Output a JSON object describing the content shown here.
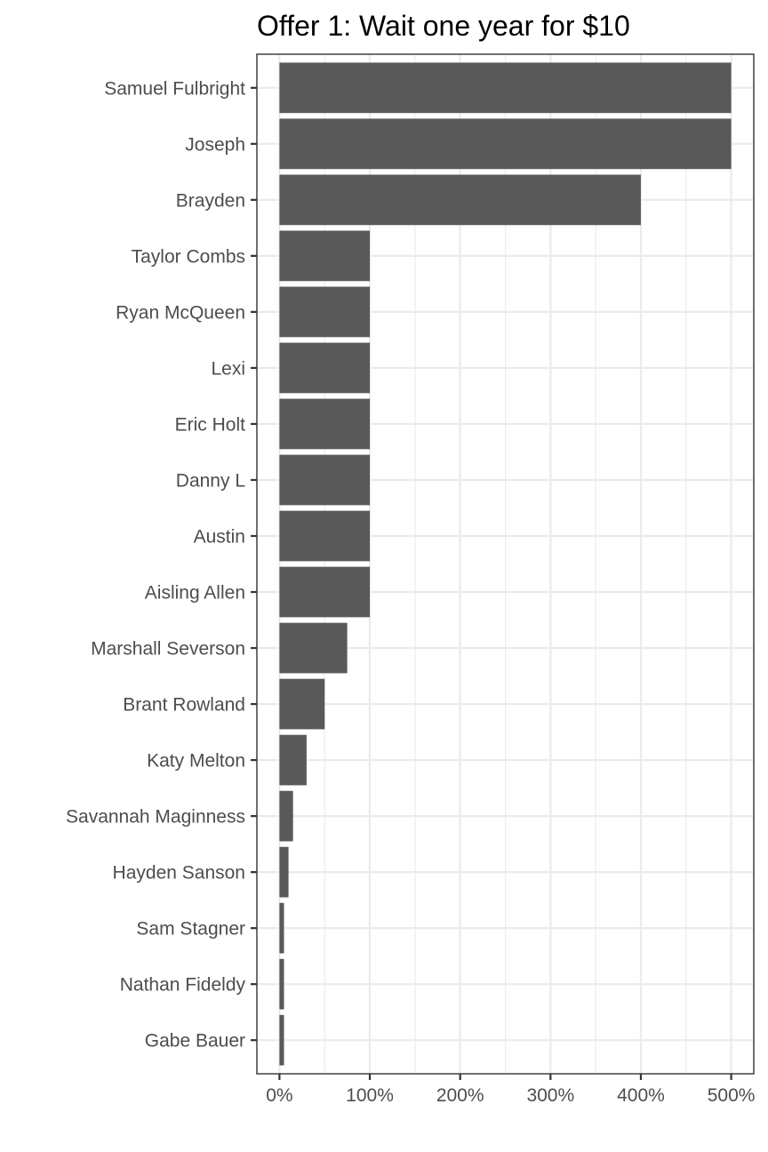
{
  "chart_data": {
    "type": "bar",
    "orientation": "horizontal",
    "title": "Offer 1: Wait one year for $10",
    "xlabel": "",
    "ylabel": "",
    "categories": [
      "Samuel Fulbright",
      "Joseph",
      "Brayden",
      "Taylor Combs",
      "Ryan McQueen",
      "Lexi",
      "Eric Holt",
      "Danny L",
      "Austin",
      "Aisling Allen",
      "Marshall Severson",
      "Brant Rowland",
      "Katy Melton",
      "Savannah Maginness",
      "Hayden Sanson",
      "Sam Stagner",
      "Nathan Fideldy",
      "Gabe Bauer"
    ],
    "values": [
      500,
      500,
      400,
      100,
      100,
      100,
      100,
      100,
      100,
      100,
      75,
      50,
      30,
      15,
      10,
      5,
      5,
      5
    ],
    "value_unit": "%",
    "xlim": [
      -25,
      525
    ],
    "x_ticks": [
      0,
      100,
      200,
      300,
      400,
      500
    ],
    "x_tick_labels": [
      "0%",
      "100%",
      "200%",
      "300%",
      "400%",
      "500%"
    ],
    "grid": true,
    "legend": "none",
    "bar_color": "#595959",
    "grid_color": "#ebebeb",
    "axis_color": "#333333",
    "label_color": "#4d4d4d"
  }
}
